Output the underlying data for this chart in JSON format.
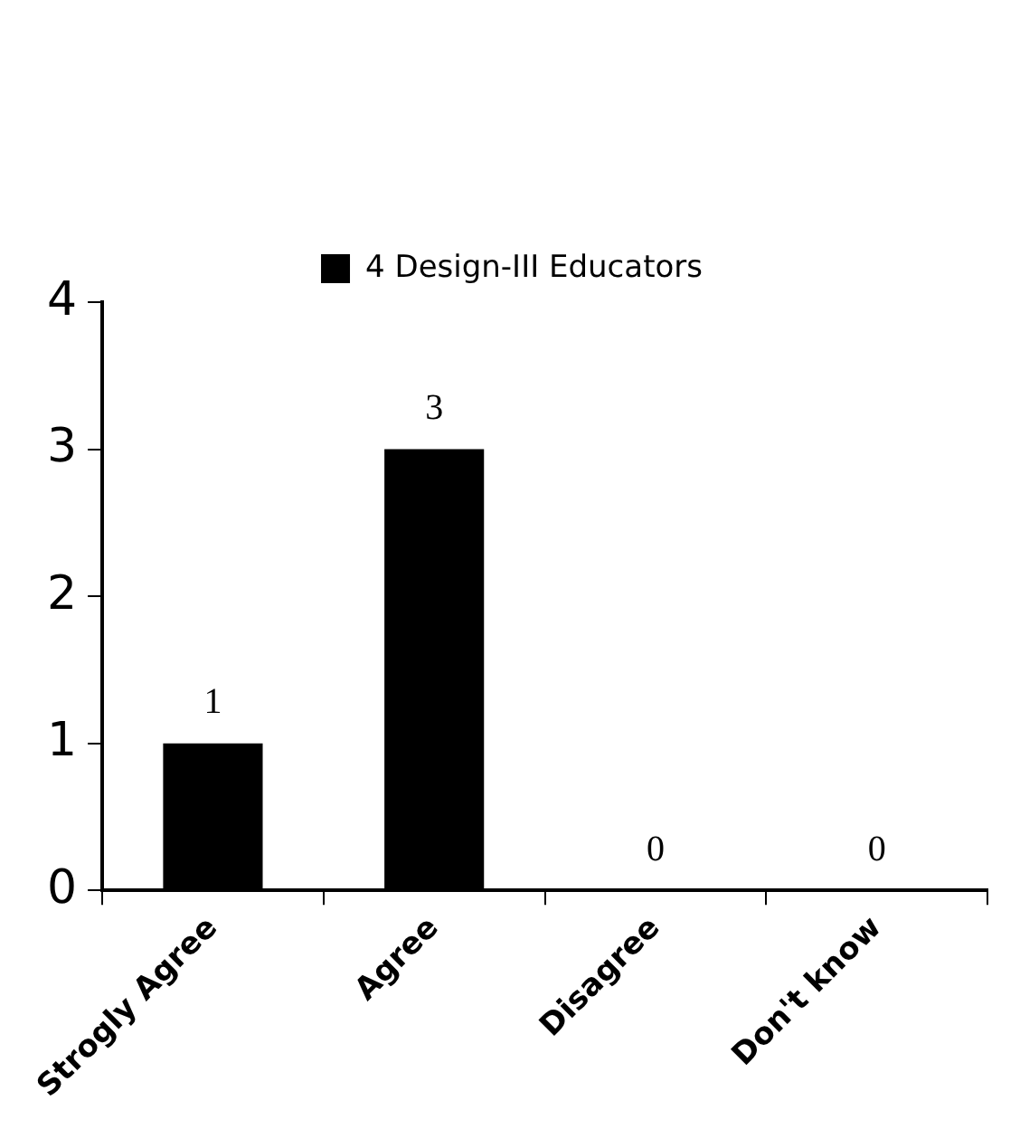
{
  "chart_data": {
    "type": "bar",
    "categories": [
      "Strogly Agree",
      "Agree",
      "Disagree",
      "Don't know"
    ],
    "series": [
      {
        "name": "4 Design-III Educators",
        "color": "#000000",
        "values": [
          1,
          3,
          0,
          0
        ]
      }
    ],
    "ylim": [
      0,
      4
    ],
    "yticks": [
      0,
      1,
      2,
      3,
      4
    ],
    "grid": false,
    "legend": "top",
    "data_labels": true
  }
}
